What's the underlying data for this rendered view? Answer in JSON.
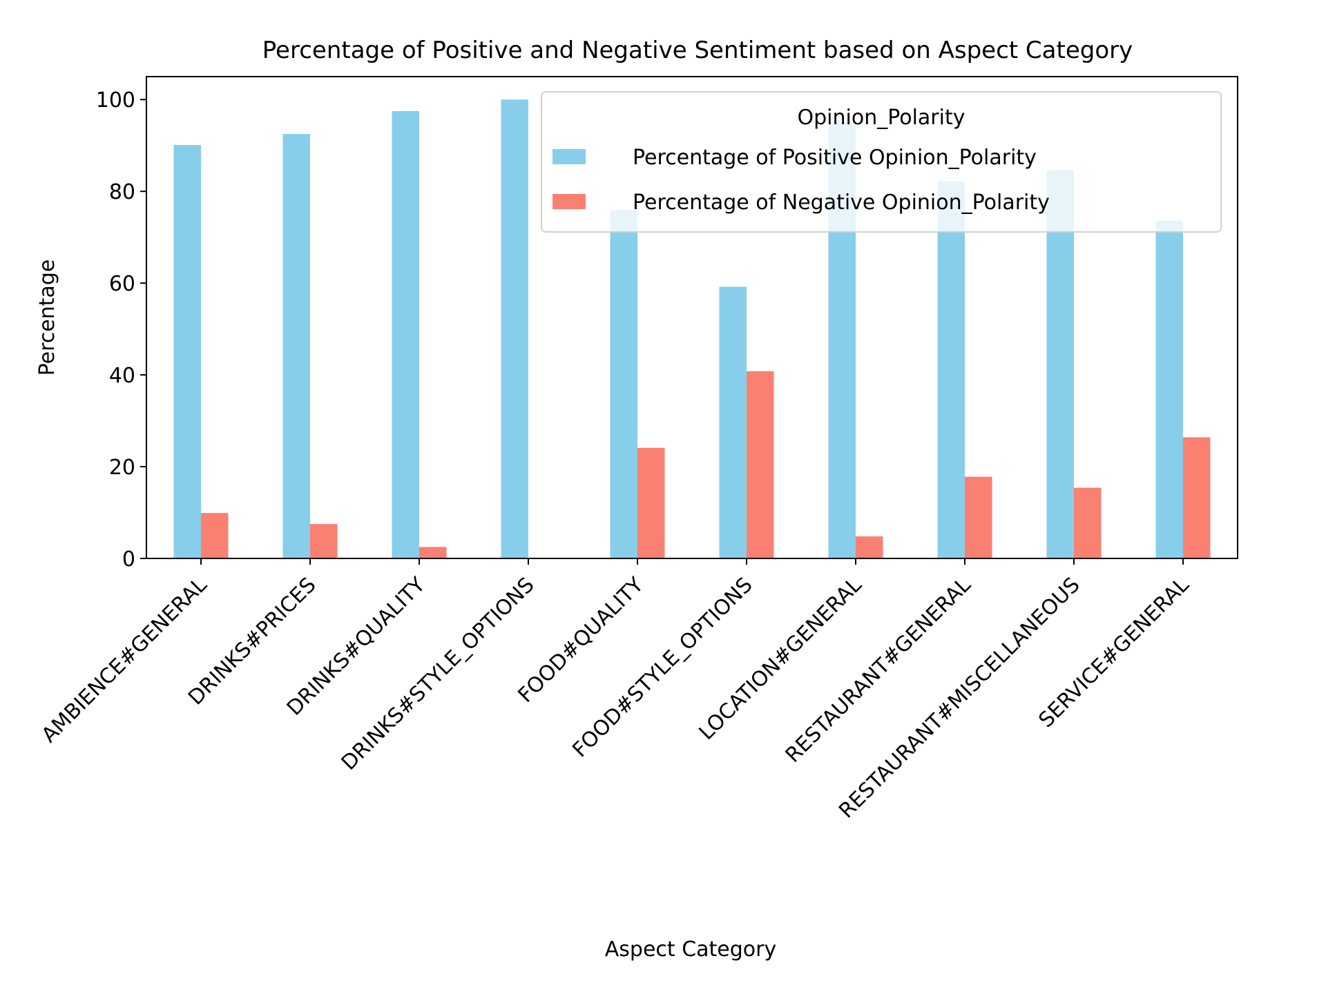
{
  "chart_data": {
    "type": "bar",
    "title": "Percentage of Positive and Negative Sentiment based on Aspect Category",
    "xlabel": "Aspect Category",
    "ylabel": "Percentage",
    "ylim": [
      0,
      105
    ],
    "yticks": [
      0,
      20,
      40,
      60,
      80,
      100
    ],
    "categories": [
      "AMBIENCE#GENERAL",
      "DRINKS#PRICES",
      "DRINKS#QUALITY",
      "DRINKS#STYLE_OPTIONS",
      "FOOD#QUALITY",
      "FOOD#STYLE_OPTIONS",
      "LOCATION#GENERAL",
      "RESTAURANT#GENERAL",
      "RESTAURANT#MISCELLANEOUS",
      "SERVICE#GENERAL"
    ],
    "series": [
      {
        "name": "Percentage of Positive Opinion_Polarity",
        "color": "#87ceeb",
        "values": [
          90.1,
          92.5,
          97.5,
          100.0,
          75.9,
          59.2,
          95.2,
          82.2,
          84.6,
          73.6
        ]
      },
      {
        "name": "Percentage of Negative Opinion_Polarity",
        "color": "#fa8072",
        "values": [
          9.9,
          7.5,
          2.5,
          0.0,
          24.1,
          40.8,
          4.8,
          17.8,
          15.4,
          26.4
        ]
      }
    ],
    "legend": {
      "title": "Opinion_Polarity",
      "placement": "top-right"
    },
    "grid": false
  }
}
